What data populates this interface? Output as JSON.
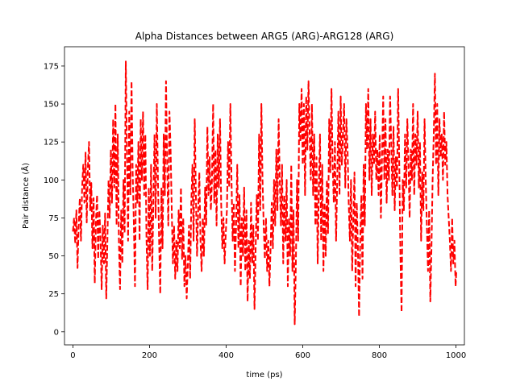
{
  "chart_data": {
    "type": "line",
    "title": "Alpha Distances between ARG5 (ARG)-ARG128 (ARG)",
    "xlabel": "time (ps)",
    "ylabel": "Pair distance (Å)",
    "xlim": [
      -22,
      1022
    ],
    "ylim": [
      -8.6,
      187.7
    ],
    "xticks": [
      0,
      200,
      400,
      600,
      800,
      1000
    ],
    "yticks": [
      0,
      25,
      50,
      75,
      100,
      125,
      150,
      175
    ],
    "grid": false,
    "legend": "none",
    "series": [
      {
        "color": "#ff0000",
        "linestyle": "dashed",
        "points": [
          [
            0,
            66
          ],
          [
            3,
            75
          ],
          [
            6,
            58
          ],
          [
            9,
            80
          ],
          [
            12,
            42
          ],
          [
            15,
            70
          ],
          [
            18,
            88
          ],
          [
            21,
            60
          ],
          [
            24,
            95
          ],
          [
            27,
            110
          ],
          [
            30,
            85
          ],
          [
            33,
            118
          ],
          [
            36,
            72
          ],
          [
            39,
            108
          ],
          [
            42,
            125
          ],
          [
            45,
            80
          ],
          [
            48,
            98
          ],
          [
            51,
            55
          ],
          [
            54,
            88
          ],
          [
            57,
            32
          ],
          [
            60,
            72
          ],
          [
            63,
            90
          ],
          [
            66,
            48
          ],
          [
            69,
            80
          ],
          [
            72,
            62
          ],
          [
            75,
            28
          ],
          [
            78,
            70
          ],
          [
            81,
            45
          ],
          [
            84,
            78
          ],
          [
            87,
            22
          ],
          [
            90,
            60
          ],
          [
            93,
            100
          ],
          [
            96,
            75
          ],
          [
            99,
            120
          ],
          [
            102,
            85
          ],
          [
            105,
            140
          ],
          [
            108,
            95
          ],
          [
            111,
            150
          ],
          [
            114,
            70
          ],
          [
            117,
            130
          ],
          [
            120,
            60
          ],
          [
            123,
            28
          ],
          [
            126,
            80
          ],
          [
            129,
            45
          ],
          [
            132,
            100
          ],
          [
            135,
            65
          ],
          [
            138,
            178
          ],
          [
            141,
            120
          ],
          [
            144,
            60
          ],
          [
            147,
            145
          ],
          [
            150,
            90
          ],
          [
            153,
            165
          ],
          [
            156,
            105
          ],
          [
            159,
            72
          ],
          [
            162,
            30
          ],
          [
            165,
            110
          ],
          [
            168,
            85
          ],
          [
            171,
            125
          ],
          [
            174,
            60
          ],
          [
            177,
            140
          ],
          [
            180,
            100
          ],
          [
            183,
            145
          ],
          [
            186,
            90
          ],
          [
            189,
            130
          ],
          [
            192,
            62
          ],
          [
            195,
            28
          ],
          [
            198,
            95
          ],
          [
            201,
            50
          ],
          [
            204,
            110
          ],
          [
            207,
            40
          ],
          [
            210,
            85
          ],
          [
            213,
            130
          ],
          [
            216,
            75
          ],
          [
            219,
            150
          ],
          [
            222,
            100
          ],
          [
            225,
            60
          ],
          [
            228,
            25
          ],
          [
            231,
            95
          ],
          [
            234,
            55
          ],
          [
            237,
            130
          ],
          [
            240,
            90
          ],
          [
            243,
            165
          ],
          [
            246,
            110
          ],
          [
            249,
            70
          ],
          [
            252,
            145
          ],
          [
            255,
            120
          ],
          [
            258,
            80
          ],
          [
            261,
            45
          ],
          [
            264,
            70
          ],
          [
            267,
            35
          ],
          [
            270,
            60
          ],
          [
            273,
            40
          ],
          [
            276,
            80
          ],
          [
            279,
            55
          ],
          [
            282,
            95
          ],
          [
            285,
            48
          ],
          [
            288,
            75
          ],
          [
            291,
            30
          ],
          [
            294,
            50
          ],
          [
            297,
            22
          ],
          [
            300,
            45
          ],
          [
            303,
            70
          ],
          [
            306,
            35
          ],
          [
            309,
            85
          ],
          [
            312,
            110
          ],
          [
            315,
            60
          ],
          [
            318,
            140
          ],
          [
            321,
            90
          ],
          [
            324,
            50
          ],
          [
            327,
            80
          ],
          [
            330,
            105
          ],
          [
            333,
            60
          ],
          [
            336,
            40
          ],
          [
            339,
            75
          ],
          [
            342,
            50
          ],
          [
            345,
            95
          ],
          [
            348,
            70
          ],
          [
            351,
            135
          ],
          [
            354,
            90
          ],
          [
            357,
            115
          ],
          [
            360,
            80
          ],
          [
            363,
            100
          ],
          [
            366,
            150
          ],
          [
            369,
            85
          ],
          [
            372,
            120
          ],
          [
            375,
            70
          ],
          [
            378,
            130
          ],
          [
            381,
            95
          ],
          [
            384,
            140
          ],
          [
            387,
            85
          ],
          [
            390,
            55
          ],
          [
            393,
            75
          ],
          [
            396,
            45
          ],
          [
            399,
            65
          ],
          [
            402,
            80
          ],
          [
            405,
            125
          ],
          [
            408,
            95
          ],
          [
            411,
            150
          ],
          [
            414,
            100
          ],
          [
            417,
            60
          ],
          [
            420,
            85
          ],
          [
            423,
            40
          ],
          [
            426,
            70
          ],
          [
            429,
            110
          ],
          [
            432,
            55
          ],
          [
            435,
            90
          ],
          [
            438,
            30
          ],
          [
            441,
            75
          ],
          [
            444,
            50
          ],
          [
            447,
            95
          ],
          [
            450,
            40
          ],
          [
            453,
            80
          ],
          [
            456,
            20
          ],
          [
            459,
            60
          ],
          [
            462,
            35
          ],
          [
            465,
            85
          ],
          [
            468,
            45
          ],
          [
            471,
            70
          ],
          [
            474,
            15
          ],
          [
            477,
            55
          ],
          [
            480,
            90
          ],
          [
            483,
            60
          ],
          [
            486,
            130
          ],
          [
            489,
            80
          ],
          [
            492,
            150
          ],
          [
            495,
            100
          ],
          [
            498,
            70
          ],
          [
            501,
            48
          ],
          [
            504,
            75
          ],
          [
            507,
            40
          ],
          [
            510,
            60
          ],
          [
            513,
            30
          ],
          [
            516,
            55
          ],
          [
            519,
            85
          ],
          [
            522,
            55
          ],
          [
            525,
            100
          ],
          [
            528,
            70
          ],
          [
            531,
            120
          ],
          [
            534,
            80
          ],
          [
            537,
            140
          ],
          [
            540,
            100
          ],
          [
            543,
            70
          ],
          [
            546,
            110
          ],
          [
            549,
            45
          ],
          [
            552,
            90
          ],
          [
            555,
            60
          ],
          [
            558,
            100
          ],
          [
            561,
            30
          ],
          [
            564,
            75
          ],
          [
            567,
            50
          ],
          [
            570,
            110
          ],
          [
            573,
            40
          ],
          [
            576,
            80
          ],
          [
            579,
            5
          ],
          [
            582,
            45
          ],
          [
            585,
            100
          ],
          [
            588,
            60
          ],
          [
            591,
            150
          ],
          [
            594,
            125
          ],
          [
            597,
            160
          ],
          [
            600,
            110
          ],
          [
            603,
            150
          ],
          [
            606,
            90
          ],
          [
            609,
            155
          ],
          [
            612,
            120
          ],
          [
            615,
            165
          ],
          [
            618,
            130
          ],
          [
            621,
            100
          ],
          [
            624,
            150
          ],
          [
            627,
            90
          ],
          [
            630,
            130
          ],
          [
            633,
            70
          ],
          [
            636,
            115
          ],
          [
            639,
            45
          ],
          [
            642,
            95
          ],
          [
            645,
            130
          ],
          [
            648,
            60
          ],
          [
            651,
            110
          ],
          [
            654,
            40
          ],
          [
            657,
            85
          ],
          [
            660,
            50
          ],
          [
            663,
            100
          ],
          [
            666,
            65
          ],
          [
            669,
            140
          ],
          [
            672,
            105
          ],
          [
            675,
            160
          ],
          [
            678,
            110
          ],
          [
            681,
            85
          ],
          [
            684,
            125
          ],
          [
            687,
            60
          ],
          [
            690,
            100
          ],
          [
            693,
            145
          ],
          [
            696,
            90
          ],
          [
            699,
            155
          ],
          [
            702,
            110
          ],
          [
            705,
            130
          ],
          [
            708,
            150
          ],
          [
            711,
            95
          ],
          [
            714,
            140
          ],
          [
            717,
            120
          ],
          [
            720,
            85
          ],
          [
            723,
            60
          ],
          [
            726,
            100
          ],
          [
            729,
            40
          ],
          [
            732,
            75
          ],
          [
            735,
            105
          ],
          [
            738,
            30
          ],
          [
            741,
            85
          ],
          [
            744,
            55
          ],
          [
            747,
            10
          ],
          [
            750,
            60
          ],
          [
            753,
            90
          ],
          [
            756,
            35
          ],
          [
            759,
            110
          ],
          [
            762,
            70
          ],
          [
            765,
            150
          ],
          [
            768,
            120
          ],
          [
            771,
            160
          ],
          [
            774,
            100
          ],
          [
            777,
            140
          ],
          [
            780,
            90
          ],
          [
            783,
            130
          ],
          [
            786,
            110
          ],
          [
            789,
            145
          ],
          [
            792,
            100
          ],
          [
            795,
            120
          ],
          [
            798,
            90
          ],
          [
            801,
            130
          ],
          [
            804,
            75
          ],
          [
            807,
            115
          ],
          [
            810,
            155
          ],
          [
            813,
            100
          ],
          [
            816,
            140
          ],
          [
            819,
            85
          ],
          [
            822,
            120
          ],
          [
            825,
            100
          ],
          [
            828,
            155
          ],
          [
            831,
            125
          ],
          [
            834,
            90
          ],
          [
            837,
            135
          ],
          [
            840,
            80
          ],
          [
            843,
            115
          ],
          [
            846,
            95
          ],
          [
            849,
            160
          ],
          [
            852,
            110
          ],
          [
            855,
            50
          ],
          [
            858,
            13
          ],
          [
            861,
            100
          ],
          [
            864,
            80
          ],
          [
            867,
            130
          ],
          [
            870,
            95
          ],
          [
            873,
            140
          ],
          [
            876,
            110
          ],
          [
            879,
            75
          ],
          [
            882,
            120
          ],
          [
            885,
            100
          ],
          [
            888,
            150
          ],
          [
            891,
            90
          ],
          [
            894,
            130
          ],
          [
            897,
            110
          ],
          [
            900,
            145
          ],
          [
            903,
            95
          ],
          [
            906,
            125
          ],
          [
            909,
            60
          ],
          [
            912,
            105
          ],
          [
            915,
            80
          ],
          [
            918,
            140
          ],
          [
            921,
            100
          ],
          [
            924,
            70
          ],
          [
            927,
            40
          ],
          [
            930,
            80
          ],
          [
            933,
            20
          ],
          [
            936,
            55
          ],
          [
            939,
            100
          ],
          [
            942,
            130
          ],
          [
            945,
            170
          ],
          [
            948,
            110
          ],
          [
            951,
            150
          ],
          [
            954,
            90
          ],
          [
            957,
            140
          ],
          [
            960,
            115
          ],
          [
            963,
            130
          ],
          [
            966,
            100
          ],
          [
            969,
            145
          ],
          [
            972,
            110
          ],
          [
            975,
            125
          ],
          [
            978,
            90
          ],
          [
            981,
            75
          ],
          [
            984,
            60
          ],
          [
            987,
            40
          ],
          [
            990,
            75
          ],
          [
            993,
            45
          ],
          [
            996,
            60
          ],
          [
            999,
            30
          ],
          [
            1001,
            40
          ]
        ]
      }
    ]
  }
}
